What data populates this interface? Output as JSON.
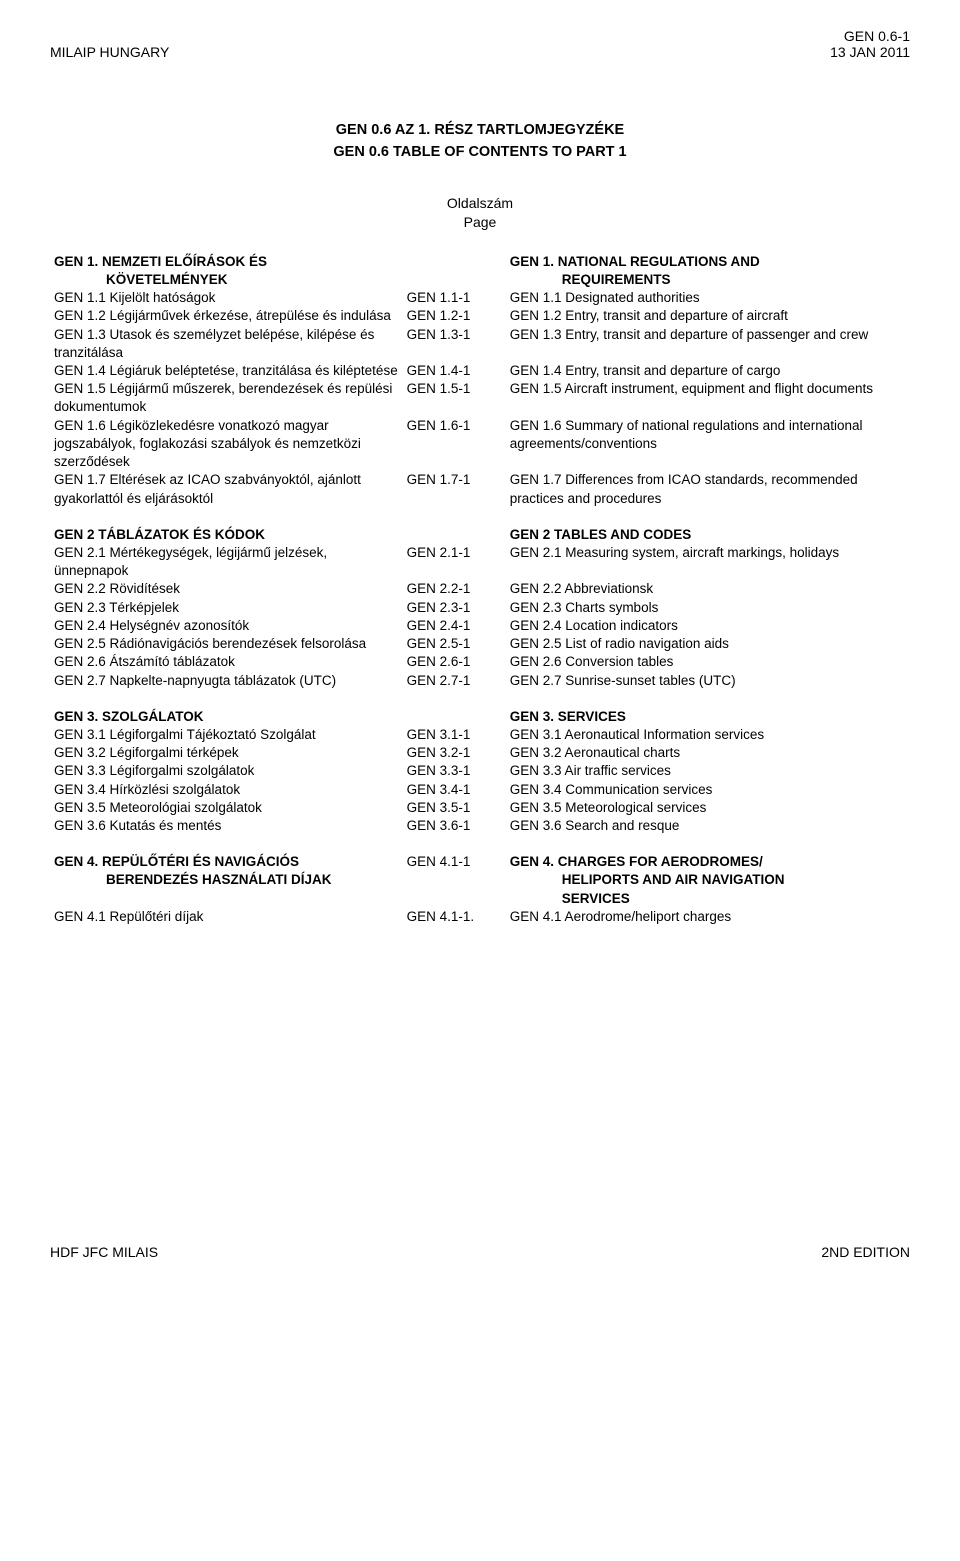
{
  "header": {
    "left": "MILAIP HUNGARY",
    "right_top": "GEN 0.6-1",
    "right_bottom": "13 JAN 2011"
  },
  "title": {
    "line1": "GEN 0.6 AZ 1. RÉSZ TARTLOMJEGYZÉKE",
    "line2": "GEN 0.6 TABLE OF CONTENTS TO PART 1"
  },
  "subhead": {
    "line1": "Oldalszám",
    "line2": "Page"
  },
  "sections": [
    {
      "head_left": "GEN 1. NEMZETI ELŐÍRÁSOK ÉS KÖVETELMÉNYEK",
      "head_left_indent": "KÖVETELMÉNYEK",
      "head_left_first": "GEN 1. NEMZETI ELŐÍRÁSOK ÉS",
      "head_right_first": "GEN 1. NATIONAL REGULATIONS AND",
      "head_right_indent": "REQUIREMENTS",
      "rows": [
        {
          "l": "GEN 1.1 Kijelölt hatóságok",
          "m": "GEN 1.1-1",
          "r": "GEN 1.1 Designated authorities"
        },
        {
          "l": "GEN 1.2 Légijárművek érkezése, átrepülése és indulása",
          "m": "GEN 1.2-1",
          "r": "GEN 1.2 Entry, transit and departure of aircraft"
        },
        {
          "l": "GEN 1.3 Utasok és személyzet belépése, kilépése és tranzitálása",
          "m": "GEN 1.3-1",
          "r": "GEN 1.3 Entry, transit and departure of passenger and crew"
        },
        {
          "l": "GEN 1.4 Légiáruk beléptetése, tranzitálása és kiléptetése",
          "m": "GEN 1.4-1",
          "r": "GEN 1.4 Entry, transit and departure of cargo"
        },
        {
          "l": "GEN 1.5 Légijármű műszerek, berendezések és repülési dokumentumok",
          "m": "GEN 1.5-1",
          "r": "GEN 1.5 Aircraft instrument, equipment and flight documents"
        },
        {
          "l": "GEN 1.6 Légiközlekedésre vonatkozó magyar jogszabályok, foglakozási szabályok és nemzetközi szerződések",
          "m": "GEN 1.6-1",
          "r": "GEN 1.6 Summary of national regulations and international agreements/conventions"
        },
        {
          "l": "GEN 1.7 Eltérések az ICAO szabványoktól, ajánlott gyakorlattól és eljárásoktól",
          "m": "GEN 1.7-1",
          "r": "GEN 1.7 Differences from ICAO standards, recommended practices and procedures"
        }
      ]
    },
    {
      "head_left_first": "GEN 2 TÁBLÁZATOK ÉS KÓDOK",
      "head_left_indent": "",
      "head_right_first": "GEN 2 TABLES AND CODES",
      "head_right_indent": "",
      "rows": [
        {
          "l": "GEN 2.1 Mértékegységek, légijármű jelzések, ünnepnapok",
          "m": "GEN 2.1-1",
          "r": "GEN 2.1 Measuring system, aircraft markings, holidays"
        },
        {
          "l": "GEN 2.2 Rövidítések",
          "m": "GEN 2.2-1",
          "r": "GEN 2.2 Abbreviationsk"
        },
        {
          "l": "GEN 2.3 Térképjelek",
          "m": "GEN 2.3-1",
          "r": "GEN 2.3 Charts symbols"
        },
        {
          "l": "GEN 2.4 Helységnév azonosítók",
          "m": "GEN 2.4-1",
          "r": "GEN 2.4 Location indicators"
        },
        {
          "l": "GEN 2.5 Rádiónavigációs berendezések felsorolása",
          "m": "GEN 2.5-1",
          "r": "GEN 2.5 List of radio navigation aids"
        },
        {
          "l": "GEN 2.6 Átszámító táblázatok",
          "m": "GEN 2.6-1",
          "r": "GEN 2.6 Conversion tables"
        },
        {
          "l": "GEN 2.7 Napkelte-napnyugta táblázatok (UTC)",
          "m": "GEN 2.7-1",
          "r": "GEN 2.7 Sunrise-sunset tables (UTC)"
        }
      ]
    },
    {
      "head_left_first": "GEN 3. SZOLGÁLATOK",
      "head_left_indent": "",
      "head_right_first": "GEN 3. SERVICES",
      "head_right_indent": "",
      "rows": [
        {
          "l": "GEN 3.1 Légiforgalmi Tájékoztató Szolgálat",
          "m": "GEN 3.1-1",
          "r": "GEN 3.1 Aeronautical Information services"
        },
        {
          "l": "GEN 3.2 Légiforgalmi térképek",
          "m": "GEN 3.2-1",
          "r": "GEN 3.2 Aeronautical charts"
        },
        {
          "l": "GEN 3.3 Légiforgalmi szolgálatok",
          "m": "GEN 3.3-1",
          "r": "GEN 3.3 Air traffic services"
        },
        {
          "l": "GEN 3.4 Hírközlési szolgálatok",
          "m": "GEN 3.4-1",
          "r": "GEN 3.4 Communication services"
        },
        {
          "l": "GEN 3.5 Meteorológiai szolgálatok",
          "m": "GEN 3.5-1",
          "r": "GEN 3.5 Meteorological services"
        },
        {
          "l": "GEN 3.6 Kutatás és mentés",
          "m": "GEN 3.6-1",
          "r": "GEN 3.6 Search and resque"
        }
      ]
    },
    {
      "head_left_first": "GEN 4. REPÜLŐTÉRI ÉS NAVIGÁCIÓS",
      "head_left_indent": "BERENDEZÉS HASZNÁLATI DÍJAK",
      "head_mid": "GEN 4.1-1",
      "head_right_first": "GEN 4. CHARGES FOR AERODROMES/",
      "head_right_indent": "HELIPORTS AND AIR NAVIGATION SERVICES",
      "head_right_indent1": "HELIPORTS AND AIR NAVIGATION",
      "head_right_indent2": "SERVICES",
      "rows": [
        {
          "l": "GEN 4.1 Repülőtéri díjak",
          "m": "GEN 4.1-1.",
          "r": "GEN 4.1 Aerodrome/heliport charges"
        }
      ]
    }
  ],
  "footer": {
    "left": "HDF JFC MILAIS",
    "right": "2ND EDITION"
  }
}
